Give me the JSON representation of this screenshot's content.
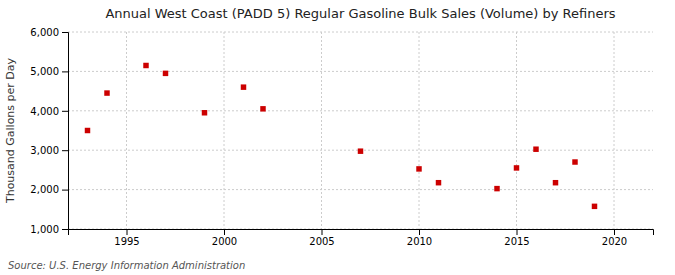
{
  "chart_data": {
    "type": "scatter",
    "title": "Annual West Coast (PADD 5) Regular Gasoline Bulk Sales (Volume) by Refiners",
    "ylabel": "Thousand Gallons per Day",
    "annotation": "Source: U.S. Energy Information Administration",
    "x": [
      1993,
      1994,
      1996,
      1997,
      1999,
      2001,
      2002,
      2007,
      2010,
      2011,
      2014,
      2015,
      2016,
      2017,
      2018,
      2019
    ],
    "values": [
      3500,
      4450,
      5150,
      4950,
      3950,
      4600,
      4050,
      2975,
      2525,
      2175,
      2025,
      2550,
      3025,
      2175,
      2700,
      1575
    ],
    "color": "#cc0000",
    "marker": "square",
    "xlim": [
      1992,
      2022
    ],
    "xticks": [
      1995,
      2000,
      2005,
      2010,
      2015,
      2020
    ],
    "ylim": [
      1000,
      6000
    ],
    "yticks": [
      {
        "value": 1000,
        "label": "1,000"
      },
      {
        "value": 2000,
        "label": "2,000"
      },
      {
        "value": 3000,
        "label": "3,000"
      },
      {
        "value": 4000,
        "label": "4,000"
      },
      {
        "value": 5000,
        "label": "5,000"
      },
      {
        "value": 6000,
        "label": "6,000"
      }
    ],
    "grid": true
  }
}
